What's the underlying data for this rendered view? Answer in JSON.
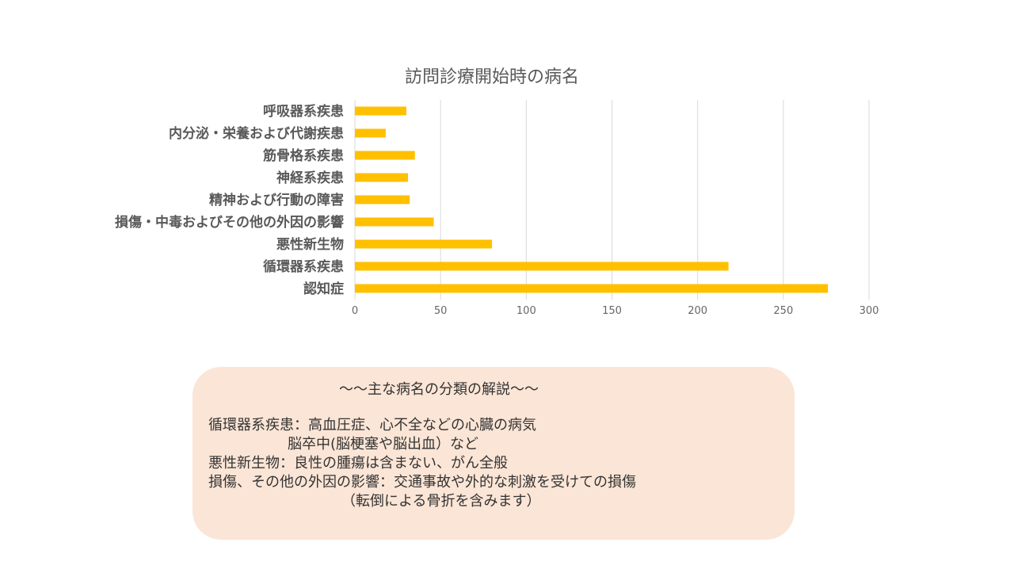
{
  "chart_data": {
    "type": "bar",
    "orientation": "horizontal",
    "title": "訪問診療開始時の病名",
    "categories": [
      "呼吸器系疾患",
      "内分泌・栄養および代謝疾患",
      "筋骨格系疾患",
      "神経系疾患",
      "精神および行動の障害",
      "損傷・中毒およびその他の外因の影響",
      "悪性新生物",
      "循環器系疾患",
      "認知症"
    ],
    "values": [
      30,
      18,
      35,
      31,
      32,
      46,
      80,
      218,
      276
    ],
    "xlim": [
      0,
      300
    ],
    "xticks": [
      "0",
      "50",
      "100",
      "150",
      "200",
      "250",
      "300"
    ],
    "grid": "vertical",
    "bar_color": "#ffc000",
    "grid_color": "#d9d9d9"
  },
  "note": {
    "heading": "～～主な病名の分類の解説～～",
    "lines": [
      "循環器系疾患：高血圧症、心不全などの心臓の病気",
      "脳卒中(脳梗塞や脳出血）など",
      "悪性新生物：良性の腫瘍は含まない、がん全般",
      "損傷、その他の外因の影響：交通事故や外的な刺激を受けての損傷",
      "（転倒による骨折を含みます）"
    ],
    "background_color": "#fbe5d6"
  }
}
